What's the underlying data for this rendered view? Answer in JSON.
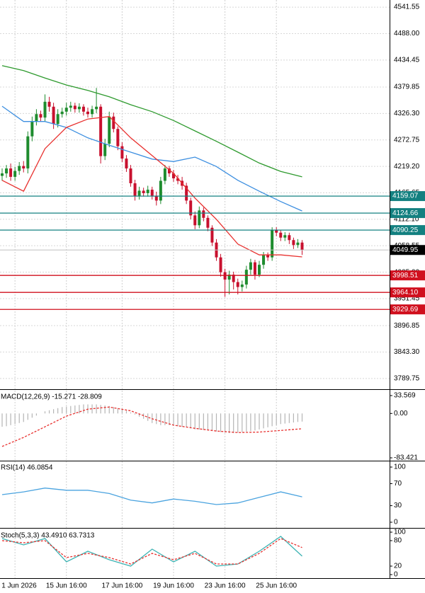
{
  "chart_data": [
    {
      "type": "candlestick",
      "grid": true,
      "up_color": "#1e8c2e",
      "down_color": "#c8102e",
      "categories": [
        null,
        null,
        null,
        "1 Jun 2026",
        null,
        null,
        null,
        null,
        null,
        null,
        null,
        null,
        null,
        null,
        null,
        "15 Jun 16:00",
        null,
        null,
        null,
        null,
        null,
        null,
        null,
        null,
        null,
        null,
        null,
        null,
        "17 Jun 16:00",
        null,
        null,
        null,
        null,
        null,
        null,
        null,
        null,
        null,
        null,
        null,
        "19 Jun 16:00",
        null,
        null,
        null,
        null,
        null,
        null,
        null,
        null,
        null,
        null,
        null,
        "23 Jun 16:00",
        null,
        null,
        null,
        null,
        null,
        null,
        null,
        null,
        null,
        null,
        null,
        "25 Jun 16:00",
        null,
        null,
        null,
        null,
        null,
        null
      ],
      "open": [
        4200,
        4205,
        4215,
        4198,
        4210,
        4220,
        4215,
        4280,
        4310,
        4325,
        4318,
        4350,
        4340,
        4305,
        4325,
        4330,
        4338,
        4342,
        4335,
        4340,
        4330,
        4325,
        4335,
        4340,
        4240,
        4265,
        4320,
        4295,
        4260,
        4235,
        4215,
        4185,
        4160,
        4170,
        4165,
        4172,
        4160,
        4150,
        4190,
        4215,
        4205,
        4195,
        4190,
        4180,
        4150,
        4120,
        4100,
        4130,
        4115,
        4095,
        4065,
        4035,
        4005,
        3990,
        4000,
        3985,
        3975,
        3980,
        4010,
        4025,
        4000,
        4020,
        4040,
        4035,
        4090,
        4085,
        4075,
        4080,
        4070,
        4060,
        4065
      ],
      "high": [
        4215,
        4222,
        4225,
        4218,
        4228,
        4230,
        4290,
        4320,
        4335,
        4332,
        4365,
        4360,
        4348,
        4335,
        4338,
        4348,
        4350,
        4348,
        4347,
        4345,
        4338,
        4342,
        4378,
        4345,
        4275,
        4330,
        4328,
        4300,
        4268,
        4242,
        4222,
        4192,
        4178,
        4176,
        4180,
        4178,
        4168,
        4198,
        4222,
        4220,
        4212,
        4202,
        4198,
        4186,
        4156,
        4128,
        4138,
        4136,
        4120,
        4100,
        4072,
        4042,
        4012,
        4008,
        4006,
        3992,
        3988,
        4018,
        4032,
        4030,
        4028,
        4046,
        4045,
        4096,
        4096,
        4090,
        4086,
        4085,
        4075,
        4072,
        4070
      ],
      "low": [
        4190,
        4196,
        4190,
        4190,
        4202,
        4207,
        4205,
        4270,
        4302,
        4310,
        4310,
        4330,
        4295,
        4298,
        4318,
        4322,
        4330,
        4328,
        4328,
        4322,
        4318,
        4318,
        4327,
        4225,
        4232,
        4258,
        4288,
        4252,
        4228,
        4208,
        4178,
        4150,
        4152,
        4158,
        4158,
        4152,
        4140,
        4143,
        4183,
        4198,
        4188,
        4183,
        4172,
        4143,
        4112,
        4092,
        4094,
        4108,
        4088,
        4058,
        4028,
        3996,
        3955,
        3960,
        3970,
        3960,
        3966,
        3972,
        4000,
        3990,
        3995,
        4012,
        4028,
        4028,
        4078,
        4068,
        4068,
        4062,
        4052,
        4054,
        4040
      ],
      "close": [
        4205,
        4215,
        4198,
        4210,
        4220,
        4215,
        4280,
        4310,
        4325,
        4318,
        4350,
        4340,
        4305,
        4325,
        4330,
        4338,
        4342,
        4335,
        4340,
        4330,
        4325,
        4335,
        4340,
        4240,
        4265,
        4320,
        4295,
        4260,
        4235,
        4215,
        4185,
        4160,
        4170,
        4165,
        4172,
        4160,
        4150,
        4190,
        4215,
        4205,
        4195,
        4190,
        4180,
        4150,
        4120,
        4100,
        4130,
        4115,
        4095,
        4065,
        4035,
        4005,
        3990,
        4000,
        3985,
        3975,
        3980,
        4010,
        4025,
        4000,
        4020,
        4040,
        4035,
        4090,
        4085,
        4075,
        4080,
        4070,
        4060,
        4065,
        4049.95
      ],
      "series": [
        {
          "color": "#2e9a2e",
          "x": [
            0,
            5,
            10,
            15,
            20,
            25,
            30,
            35,
            40,
            45,
            50,
            55,
            60,
            65,
            70
          ],
          "values": [
            4423,
            4413,
            4398,
            4384,
            4373,
            4360,
            4344,
            4330,
            4312,
            4291,
            4270,
            4248,
            4226,
            4209,
            4198
          ]
        },
        {
          "color": "#3d8fe0",
          "x": [
            0,
            5,
            10,
            15,
            20,
            25,
            30,
            35,
            40,
            45,
            50,
            55,
            60,
            65,
            70
          ],
          "values": [
            4341,
            4310,
            4310,
            4298,
            4277,
            4262,
            4248,
            4234,
            4229,
            4238,
            4219,
            4191,
            4169,
            4148,
            4129
          ]
        },
        {
          "color": "#e8302e",
          "x": [
            0,
            5,
            10,
            15,
            20,
            25,
            30,
            35,
            40,
            45,
            50,
            55,
            60,
            65,
            70
          ],
          "values": [
            4191,
            4169,
            4255,
            4298,
            4315,
            4320,
            4277,
            4241,
            4205,
            4155,
            4112,
            4062,
            4040,
            4040,
            4036
          ]
        }
      ],
      "levels": [
        {
          "value": 4159.07,
          "color": "#138080"
        },
        {
          "value": 4124.66,
          "color": "#138080"
        },
        {
          "value": 4090.25,
          "color": "#138080"
        },
        {
          "value": 3998.51,
          "color": "#d0101e"
        },
        {
          "value": 3964.1,
          "label": "3964.10",
          "color": "#d0101e"
        },
        {
          "value": 3929.69,
          "color": "#d0101e"
        }
      ],
      "last": 4049.95,
      "ylim": [
        3771,
        4556
      ],
      "yticks": [
        4541.55,
        {
          "value": 4488,
          "label": "4488.00"
        },
        4434.45,
        4379.85,
        {
          "value": 4326.3,
          "label": "4326.30"
        },
        4272.75,
        {
          "value": 4219.2,
          "label": "4219.20"
        },
        4165.65,
        {
          "value": 4112.1,
          "label": "4112.10"
        },
        4058.55,
        {
          "value": 4005,
          "label": "4005.00"
        },
        3951.45,
        3896.85,
        {
          "value": 3843.3,
          "label": "3843.30"
        },
        3789.75
      ]
    },
    {
      "type": "macd",
      "title": "MACD(12,26,9) -15.271 -28.809",
      "color": "#b5b5b5",
      "values": [
        -25,
        -24,
        -22,
        -20,
        -18,
        -16,
        -12,
        -8,
        -4,
        0,
        4,
        6,
        8,
        10,
        12,
        13,
        14,
        15,
        16,
        17,
        17,
        17,
        17,
        16,
        15,
        14,
        12,
        10,
        8,
        5,
        2,
        -2,
        -6,
        -10,
        -14,
        -18,
        -20,
        -22,
        -22,
        -22,
        -23,
        -24,
        -25,
        -26,
        -28,
        -30,
        -30,
        -31,
        -32,
        -33,
        -34,
        -35,
        -36,
        -37,
        -37,
        -36,
        -35,
        -34,
        -33,
        -32,
        -30,
        -28,
        -26,
        -24,
        -22,
        -20,
        -19,
        -18,
        -17,
        -16,
        -15.271
      ],
      "signal": {
        "color": "#e8302e",
        "x": [
          0,
          5,
          10,
          15,
          20,
          25,
          30,
          35,
          40,
          45,
          50,
          55,
          60,
          65,
          70
        ],
        "values": [
          -62,
          -45,
          -25,
          -5,
          8,
          12,
          5,
          -10,
          -22,
          -28,
          -33,
          -36,
          -35,
          -32,
          -28.809
        ]
      },
      "ylim": [
        -87.4,
        42.9
      ],
      "yticks": [
        33.569,
        {
          "value": 0,
          "label": "0.00"
        },
        -83.421
      ]
    },
    {
      "type": "line",
      "title": "RSI(14) 46.0854",
      "color": "#4aa3df",
      "x": [
        0,
        5,
        10,
        15,
        20,
        25,
        30,
        35,
        40,
        45,
        50,
        55,
        60,
        65,
        70
      ],
      "values": [
        50,
        55,
        62,
        58,
        58,
        52,
        40,
        35,
        42,
        38,
        32,
        35,
        45,
        55,
        46.0854
      ],
      "ylim": [
        -9,
        110.3
      ],
      "yticks": [
        100,
        70,
        30,
        0
      ]
    },
    {
      "type": "stoch",
      "title": "Stoch(5,3,3) 43.4910 63.7313",
      "series": [
        {
          "color": "#3cb3b3",
          "x": [
            0,
            5,
            10,
            15,
            20,
            25,
            30,
            35,
            40,
            45,
            50,
            55,
            60,
            65,
            70
          ],
          "values": [
            85,
            70,
            85,
            30,
            55,
            35,
            20,
            60,
            30,
            55,
            20,
            25,
            55,
            90,
            43.491
          ]
        },
        {
          "color": "#e8302e",
          "x": [
            0,
            5,
            10,
            15,
            20,
            25,
            30,
            35,
            40,
            45,
            50,
            55,
            60,
            65,
            70
          ],
          "values": [
            80,
            75,
            80,
            40,
            50,
            40,
            25,
            50,
            35,
            50,
            25,
            25,
            50,
            85,
            63.7313
          ]
        }
      ],
      "ylim": [
        -5,
        106.7
      ],
      "yticks": [
        100,
        80,
        20,
        0
      ]
    }
  ]
}
